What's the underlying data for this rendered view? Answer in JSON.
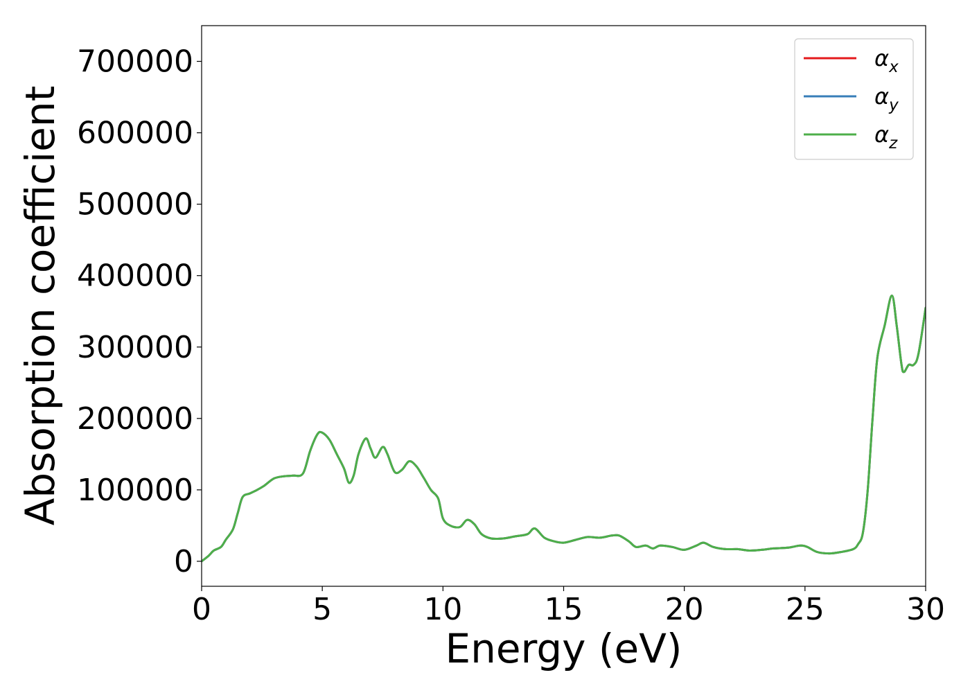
{
  "chart_data": {
    "type": "line",
    "title": "",
    "xlabel": "Energy (eV)",
    "ylabel": "Absorption coefficient",
    "xlim": [
      0,
      30
    ],
    "ylim": [
      -35000,
      750000
    ],
    "xticks": [
      0,
      5,
      10,
      15,
      20,
      25,
      30
    ],
    "xtick_labels": [
      "0",
      "5",
      "10",
      "15",
      "20",
      "25",
      "30"
    ],
    "yticks": [
      0,
      100000,
      200000,
      300000,
      400000,
      500000,
      600000,
      700000
    ],
    "ytick_labels": [
      "0",
      "100000",
      "200000",
      "300000",
      "400000",
      "500000",
      "600000",
      "700000"
    ],
    "grid": false,
    "legend_position": "top-right",
    "x": [
      0.0,
      0.3,
      0.5,
      0.8,
      1.0,
      1.3,
      1.5,
      1.7,
      2.0,
      2.3,
      2.6,
      3.0,
      3.4,
      3.8,
      4.2,
      4.5,
      4.8,
      5.0,
      5.3,
      5.6,
      5.9,
      6.1,
      6.3,
      6.5,
      6.8,
      7.0,
      7.2,
      7.5,
      7.7,
      8.0,
      8.3,
      8.6,
      8.9,
      9.2,
      9.5,
      9.8,
      10.0,
      10.3,
      10.7,
      11.0,
      11.3,
      11.6,
      12.0,
      12.5,
      13.0,
      13.5,
      13.8,
      14.2,
      14.6,
      15.0,
      15.5,
      16.0,
      16.5,
      17.0,
      17.3,
      17.7,
      18.0,
      18.4,
      18.7,
      19.0,
      19.5,
      20.0,
      20.5,
      20.8,
      21.2,
      21.7,
      22.2,
      22.7,
      23.2,
      23.7,
      24.3,
      24.8,
      25.1,
      25.5,
      26.0,
      26.5,
      27.0,
      27.2,
      27.4,
      27.6,
      27.8,
      28.0,
      28.3,
      28.6,
      28.8,
      29.0,
      29.1,
      29.3,
      29.5,
      29.7,
      30.0
    ],
    "series": [
      {
        "name": "α_x",
        "label_main": "α",
        "label_sub": "x",
        "color": "#e41a1c",
        "values": [
          0,
          8000,
          15000,
          20000,
          30000,
          45000,
          68000,
          90000,
          95000,
          100000,
          106000,
          116000,
          119000,
          120000,
          123000,
          155000,
          178000,
          180000,
          170000,
          150000,
          130000,
          110000,
          120000,
          150000,
          172000,
          158000,
          145000,
          160000,
          150000,
          125000,
          128000,
          140000,
          133000,
          117000,
          100000,
          88000,
          60000,
          50000,
          48000,
          58000,
          52000,
          38000,
          32000,
          32000,
          35000,
          38000,
          46000,
          33000,
          28000,
          26000,
          30000,
          34000,
          33000,
          36000,
          36000,
          28000,
          20000,
          22000,
          18000,
          22000,
          20000,
          16000,
          22000,
          26000,
          20000,
          17000,
          17000,
          15000,
          16000,
          18000,
          19000,
          22000,
          20000,
          13000,
          11000,
          13000,
          17000,
          24000,
          40000,
          100000,
          200000,
          285000,
          330000,
          372000,
          330000,
          275000,
          265000,
          275000,
          275000,
          290000,
          355000
        ]
      },
      {
        "name": "α_y",
        "label_main": "α",
        "label_sub": "y",
        "color": "#377eb8",
        "values": [
          0,
          8000,
          15000,
          20000,
          30000,
          45000,
          68000,
          90000,
          95000,
          100000,
          106000,
          116000,
          119000,
          120000,
          123000,
          155000,
          178000,
          180000,
          170000,
          150000,
          130000,
          110000,
          120000,
          150000,
          172000,
          158000,
          145000,
          160000,
          150000,
          125000,
          128000,
          140000,
          133000,
          117000,
          100000,
          88000,
          60000,
          50000,
          48000,
          58000,
          52000,
          38000,
          32000,
          32000,
          35000,
          38000,
          46000,
          33000,
          28000,
          26000,
          30000,
          34000,
          33000,
          36000,
          36000,
          28000,
          20000,
          22000,
          18000,
          22000,
          20000,
          16000,
          22000,
          26000,
          20000,
          17000,
          17000,
          15000,
          16000,
          18000,
          19000,
          22000,
          20000,
          13000,
          11000,
          13000,
          17000,
          24000,
          40000,
          100000,
          200000,
          285000,
          330000,
          372000,
          330000,
          275000,
          265000,
          275000,
          275000,
          290000,
          355000
        ]
      },
      {
        "name": "α_z",
        "label_main": "α",
        "label_sub": "z",
        "color": "#4daf4a",
        "values": [
          0,
          8000,
          15000,
          20000,
          30000,
          45000,
          68000,
          90000,
          95000,
          100000,
          106000,
          116000,
          119000,
          120000,
          123000,
          155000,
          178000,
          180000,
          170000,
          150000,
          130000,
          110000,
          120000,
          150000,
          172000,
          158000,
          145000,
          160000,
          150000,
          125000,
          128000,
          140000,
          133000,
          117000,
          100000,
          88000,
          60000,
          50000,
          48000,
          58000,
          52000,
          38000,
          32000,
          32000,
          35000,
          38000,
          46000,
          33000,
          28000,
          26000,
          30000,
          34000,
          33000,
          36000,
          36000,
          28000,
          20000,
          22000,
          18000,
          22000,
          20000,
          16000,
          22000,
          26000,
          20000,
          17000,
          17000,
          15000,
          16000,
          18000,
          19000,
          22000,
          20000,
          13000,
          11000,
          13000,
          17000,
          24000,
          40000,
          100000,
          200000,
          285000,
          330000,
          372000,
          330000,
          275000,
          265000,
          275000,
          275000,
          290000,
          355000
        ]
      }
    ]
  }
}
